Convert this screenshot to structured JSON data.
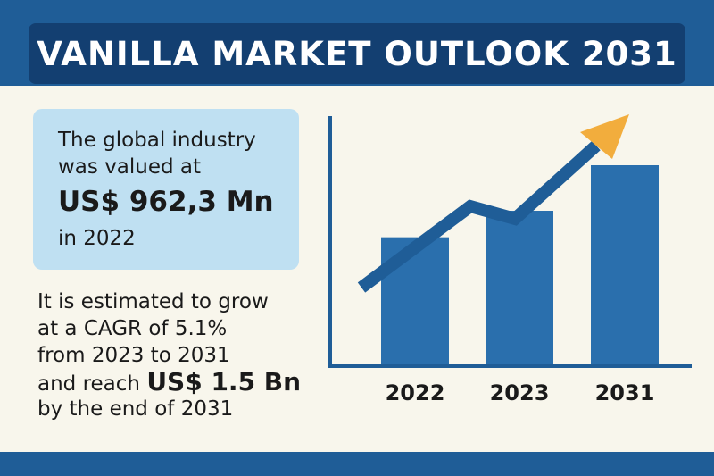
{
  "title": "VANILLA MARKET OUTLOOK 2031",
  "value_box": {
    "line1": "The global industry",
    "line2": "was valued at",
    "amount": "US$ 962,3 Mn",
    "line4": "in 2022"
  },
  "growth": {
    "line1": "It is estimated to grow",
    "line2": "at a CAGR of 5.1%",
    "line3": "from 2023 to 2031",
    "line4_prefix": "and reach ",
    "line4_value": "US$ 1.5 Bn",
    "line5": "by the end of 2031"
  },
  "colors": {
    "bar": "#2a6fad",
    "arrow": "#1f5d97",
    "arrow_head": "#f2ad3d",
    "axis": "#1f5d97"
  },
  "chart_data": {
    "type": "bar",
    "title": "",
    "xlabel": "",
    "ylabel": "",
    "categories": [
      "2022",
      "2023",
      "2031"
    ],
    "values": [
      962.3,
      1160,
      1500
    ],
    "units": "US$ Mn (approx.)",
    "ylim": [
      0,
      1800
    ],
    "trend_arrow": "rising trend arrow overlaid on bars, ending in an orange arrowhead"
  }
}
